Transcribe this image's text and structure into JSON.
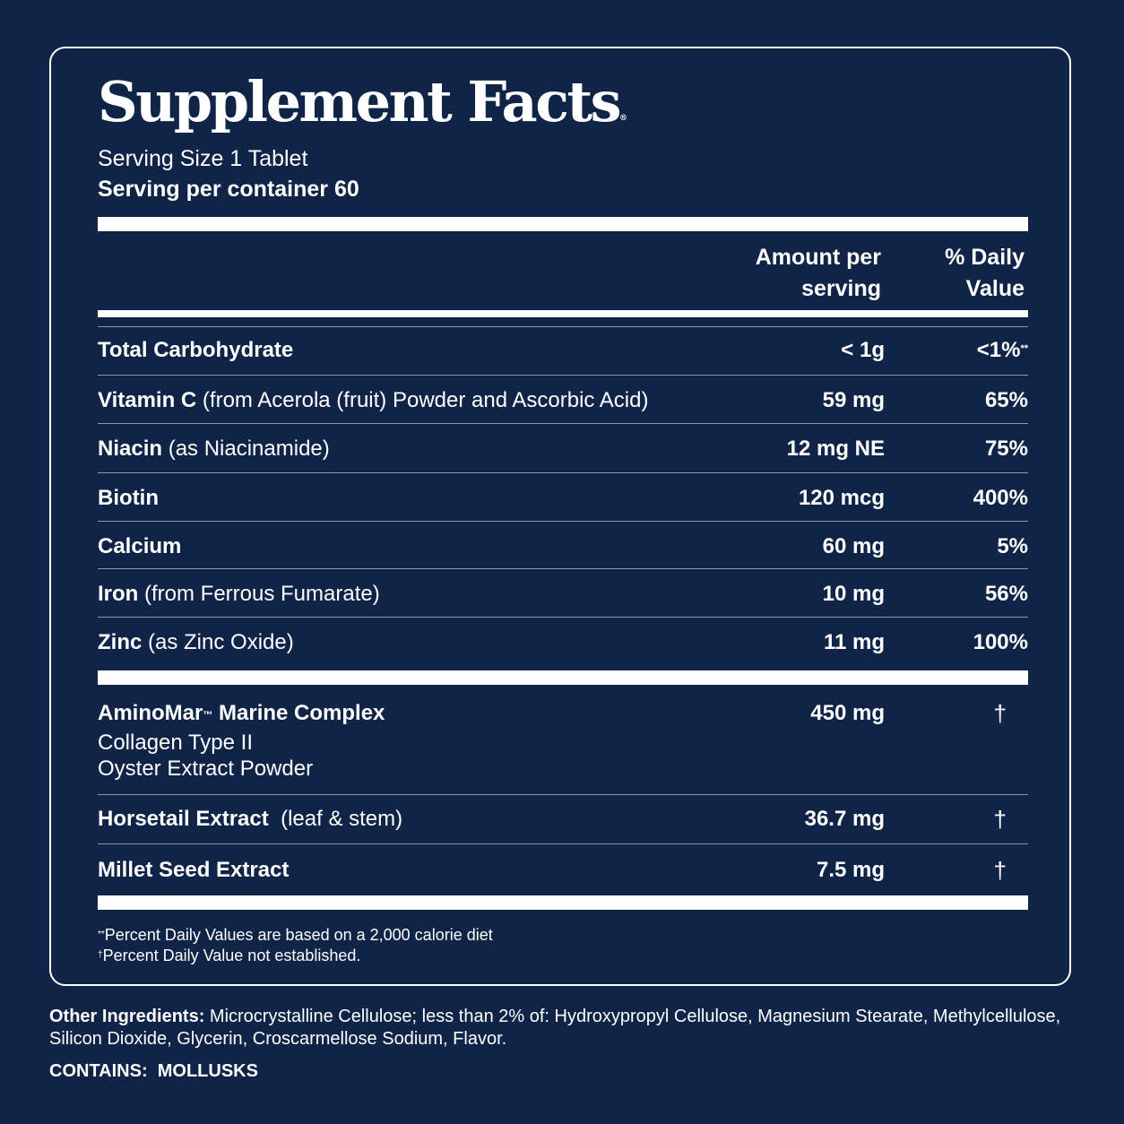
{
  "title": "Supplement Facts",
  "title_mark": "®",
  "serving_size": "Serving Size 1 Tablet",
  "servings_per_container": "Serving per container 60",
  "columns": {
    "amount_line1": "Amount per",
    "amount_line2": "serving",
    "dv_line1": "% Daily",
    "dv_line2": "Value"
  },
  "nutrients": [
    {
      "name": "Total Carbohydrate",
      "detail": "",
      "amount": "< 1g",
      "dv": "<1%",
      "dv_mark": "**"
    },
    {
      "name": "Vitamin C",
      "detail": " (from Acerola (fruit) Powder and Ascorbic Acid)",
      "amount": "59 mg",
      "dv": "65%"
    },
    {
      "name": "Niacin",
      "detail": " (as Niacinamide)",
      "amount": "12 mg NE",
      "dv": "75%"
    },
    {
      "name": "Biotin",
      "detail": "",
      "amount": "120 mcg",
      "dv": "400%"
    },
    {
      "name": "Calcium",
      "detail": "",
      "amount": "60 mg",
      "dv": "5%"
    },
    {
      "name": "Iron",
      "detail": " (from Ferrous Fumarate)",
      "amount": "10 mg",
      "dv": "56%"
    },
    {
      "name": "Zinc",
      "detail": " (as Zinc Oxide)",
      "amount": "11 mg",
      "dv": "100%"
    }
  ],
  "blend": {
    "name": "AminoMar",
    "tm": "™",
    "name_rest": " Marine Complex",
    "amount": "450 mg",
    "dv": "†",
    "sub1": "Collagen Type II",
    "sub2": "Oyster Extract Powder"
  },
  "extracts": [
    {
      "name": "Horsetail Extract",
      "detail": "  (leaf & stem)",
      "amount": "36.7 mg",
      "dv": "†"
    },
    {
      "name": "Millet Seed Extract",
      "detail": "",
      "amount": "7.5 mg",
      "dv": "†"
    }
  ],
  "footnotes": {
    "mark1": "**",
    "text1": "Percent Daily Values are based on a 2,000 calorie diet",
    "mark2": "†",
    "text2": "Percent Daily Value not established."
  },
  "other_ingredients": {
    "label": "Other Ingredients:",
    "text": " Microcrystalline Cellulose; less than 2% of: Hydroxypropyl Cellulose, Magnesium Stearate, Methylcellulose, Silicon Dioxide, Glycerin, Croscarmellose Sodium, Flavor."
  },
  "contains": {
    "label": "CONTAINS:",
    "value": "MOLLUSKS"
  }
}
